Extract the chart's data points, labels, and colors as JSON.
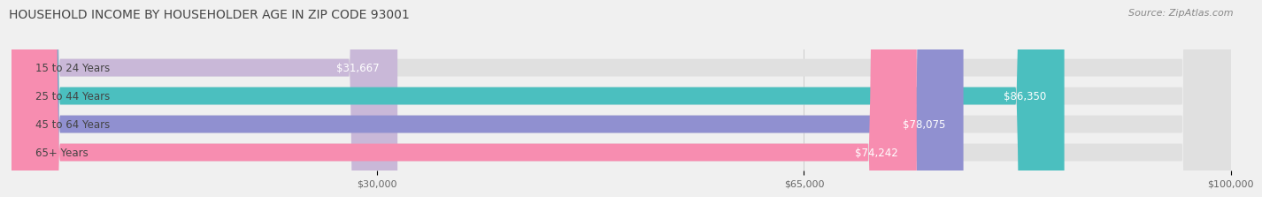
{
  "title": "HOUSEHOLD INCOME BY HOUSEHOLDER AGE IN ZIP CODE 93001",
  "source": "Source: ZipAtlas.com",
  "categories": [
    "15 to 24 Years",
    "25 to 44 Years",
    "45 to 64 Years",
    "65+ Years"
  ],
  "values": [
    31667,
    86350,
    78075,
    74242
  ],
  "bar_colors": [
    "#c9b8d8",
    "#4bbfbf",
    "#9090d0",
    "#f78db0"
  ],
  "bar_labels": [
    "$31,667",
    "$86,350",
    "$78,075",
    "$74,242"
  ],
  "xmin": 0,
  "xmax": 100000,
  "xticks": [
    30000,
    65000,
    100000
  ],
  "xtick_labels": [
    "$30,000",
    "$65,000",
    "$100,000"
  ],
  "background_color": "#f0f0f0",
  "bar_bg_color": "#e0e0e0",
  "title_fontsize": 10,
  "source_fontsize": 8,
  "label_fontsize": 8.5,
  "tick_fontsize": 8,
  "bar_height": 0.62,
  "label_color": "#ffffff",
  "category_label_color": "#444444"
}
